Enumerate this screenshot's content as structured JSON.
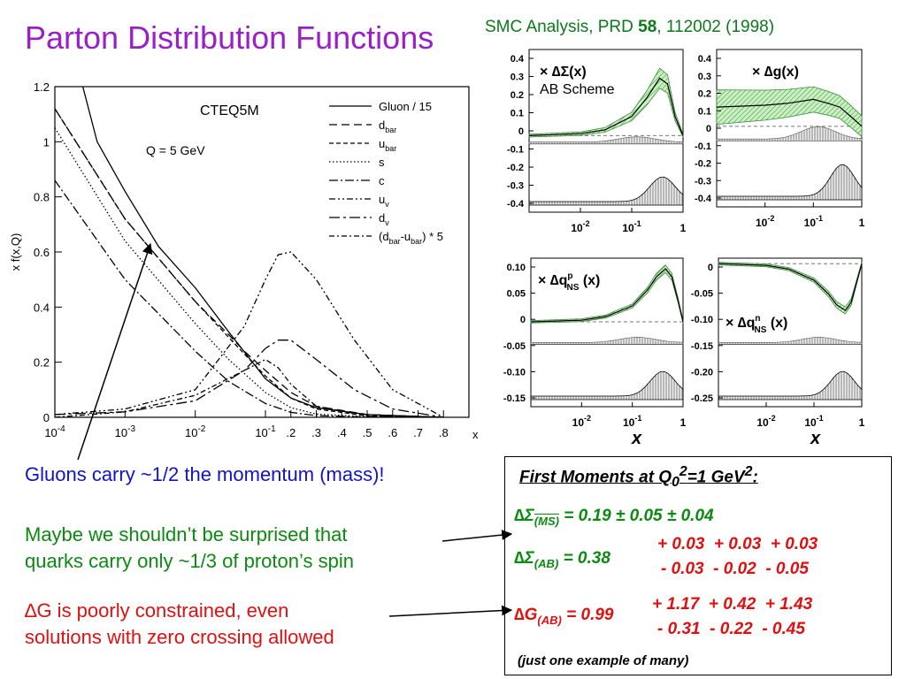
{
  "slide": {
    "title": "Parton Distribution Functions",
    "reference_prefix": "SMC Analysis, PRD ",
    "reference_volume": "58",
    "reference_suffix": ", 112002 (1998)"
  },
  "notes": {
    "gluon_momentum": "Gluons carry ~1/2 the momentum (mass)!",
    "surprise_line1": "Maybe we shouldn’t be surprised that",
    "surprise_line2": "quarks carry only ~1/3 of proton’s spin",
    "dg_line1": "∆G is poorly constrained, even",
    "dg_line2": "solutions with zero crossing allowed"
  },
  "moments": {
    "title_prefix": "First Moments at Q",
    "title_sub": "0",
    "title_sup1": "2",
    "title_mid": "=1 GeV",
    "title_sup2": "2",
    "title_end": ":",
    "ms_symbol": "∆Σ",
    "ms_sub": "(MS)",
    "ms_value": "= 0.19 ± 0.05 ± 0.04",
    "ab_symbol": "∆Σ",
    "ab_sub": "(AB)",
    "ab_value": "= 0.38",
    "ab_err_plus": [
      "+ 0.03",
      "+ 0.03",
      "+ 0.03"
    ],
    "ab_err_minus": [
      "- 0.03",
      "- 0.02",
      "- 0.05"
    ],
    "g_symbol": "∆G",
    "g_sub": "(AB)",
    "g_value": "= 0.99",
    "g_err_plus": [
      "+ 1.17",
      "+ 0.42",
      "+ 1.43"
    ],
    "g_err_minus": [
      "- 0.31",
      "- 0.22",
      "- 0.45"
    ],
    "footnote": "(just one example of many)"
  },
  "chart_data": [
    {
      "type": "line",
      "annotation": "CTEQ5M",
      "subtitle": "Q = 5 GeV",
      "xlabel": "x",
      "ylabel": "x f(x,Q)",
      "xscale": "log-linear",
      "xlim": [
        0.0001,
        0.9
      ],
      "ylim": [
        0,
        1.2
      ],
      "yticks": [
        "0",
        "0.2",
        "0.4",
        "0.6",
        "0.8",
        "1",
        "1.2"
      ],
      "xticks": [
        {
          "x": 0.0001,
          "base": "10",
          "exp": "-4"
        },
        {
          "x": 0.001,
          "base": "10",
          "exp": "-3"
        },
        {
          "x": 0.01,
          "base": "10",
          "exp": "-2"
        },
        {
          "x": 0.1,
          "base": "10",
          "exp": "-1"
        },
        {
          "x": 0.2,
          "label": ".2"
        },
        {
          "x": 0.3,
          "label": ".3"
        },
        {
          "x": 0.4,
          "label": ".4"
        },
        {
          "x": 0.5,
          "label": ".5"
        },
        {
          "x": 0.6,
          "label": ".6"
        },
        {
          "x": 0.7,
          "label": ".7"
        },
        {
          "x": 0.8,
          "label": ".8"
        }
      ],
      "legend_position": "top-right",
      "legend": [
        {
          "text": "Gluon / 15",
          "dash": "none"
        },
        {
          "text": "d",
          "sub": "bar",
          "dash": "9,5"
        },
        {
          "text": "u",
          "sub": "bar",
          "dash": "5,3"
        },
        {
          "text": "s",
          "dash": "1.5,2.5"
        },
        {
          "text": "c",
          "dash": "10,3,2,3"
        },
        {
          "text": "u",
          "sub": "v",
          "dash": "7,3,2,3,2,3"
        },
        {
          "text": "d",
          "sub": "v",
          "dash": "12,4,3,4"
        },
        {
          "text": "(d",
          "sub": "bar",
          "mid": "-u",
          "sub2": "bar",
          "end": ") * 5",
          "dash": "6,3,2,3"
        }
      ],
      "series": [
        {
          "key": "gluon",
          "dash": "none",
          "x": [
            0.00025,
            0.0004,
            0.001,
            0.003,
            0.01,
            0.03,
            0.1,
            0.2,
            0.3,
            0.5,
            0.8
          ],
          "y": [
            1.2,
            1.0,
            0.82,
            0.62,
            0.47,
            0.31,
            0.14,
            0.07,
            0.035,
            0.01,
            0.0
          ]
        },
        {
          "key": "dbar",
          "dash": "9,5",
          "x": [
            0.0001,
            0.001,
            0.01,
            0.03,
            0.05,
            0.1,
            0.2,
            0.3,
            0.5,
            0.8
          ],
          "y": [
            1.12,
            0.72,
            0.42,
            0.3,
            0.24,
            0.17,
            0.09,
            0.04,
            0.01,
            0.0
          ]
        },
        {
          "key": "ubar",
          "dash": "5,3",
          "x": [
            0.0001,
            0.001,
            0.01,
            0.03,
            0.05,
            0.1,
            0.2,
            0.3,
            0.5,
            0.8
          ],
          "y": [
            1.12,
            0.72,
            0.42,
            0.29,
            0.23,
            0.15,
            0.07,
            0.03,
            0.005,
            0.0
          ]
        },
        {
          "key": "s",
          "dash": "1.5,2.5",
          "x": [
            0.0001,
            0.001,
            0.01,
            0.03,
            0.1,
            0.2,
            0.3,
            0.5,
            0.8
          ],
          "y": [
            1.05,
            0.64,
            0.34,
            0.21,
            0.09,
            0.035,
            0.012,
            0.002,
            0.0
          ]
        },
        {
          "key": "c",
          "dash": "10,3,2,3",
          "x": [
            0.0001,
            0.001,
            0.01,
            0.03,
            0.1,
            0.2,
            0.3,
            0.5,
            0.8
          ],
          "y": [
            0.86,
            0.5,
            0.24,
            0.13,
            0.05,
            0.018,
            0.006,
            0.001,
            0.0
          ]
        },
        {
          "key": "uv",
          "dash": "7,3,2,3,2,3",
          "x": [
            0.0001,
            0.001,
            0.01,
            0.05,
            0.1,
            0.15,
            0.2,
            0.3,
            0.45,
            0.6,
            0.8
          ],
          "y": [
            0.01,
            0.03,
            0.1,
            0.33,
            0.5,
            0.59,
            0.6,
            0.5,
            0.28,
            0.1,
            0.0
          ]
        },
        {
          "key": "dv",
          "dash": "12,4,3,4",
          "x": [
            0.0001,
            0.001,
            0.01,
            0.05,
            0.1,
            0.15,
            0.2,
            0.3,
            0.45,
            0.6,
            0.8
          ],
          "y": [
            0.01,
            0.02,
            0.06,
            0.17,
            0.25,
            0.28,
            0.28,
            0.21,
            0.1,
            0.03,
            0.0
          ]
        },
        {
          "key": "dbar-ubar",
          "dash": "6,3,2,3",
          "x": [
            0.0001,
            0.001,
            0.01,
            0.05,
            0.1,
            0.15,
            0.2,
            0.3,
            0.5,
            0.8
          ],
          "y": [
            0.0,
            0.02,
            0.08,
            0.17,
            0.21,
            0.18,
            0.12,
            0.04,
            0.005,
            0.0
          ]
        }
      ]
    },
    {
      "type": "area",
      "panel": "dSigma",
      "label_prefix": "× ∆Σ(x)",
      "sublabel": "AB Scheme",
      "xlim": [
        0.001,
        1
      ],
      "xscale": "log",
      "xticks": [
        {
          "x": 0.01,
          "base": "10",
          "exp": "-2"
        },
        {
          "x": 0.1,
          "base": "10",
          "exp": "-1"
        },
        {
          "x": 1,
          "label": "1"
        }
      ],
      "yticks": [
        "0.4",
        "0.3",
        "0.2",
        "0.1",
        "0",
        "-0.1",
        "-0.2",
        "-0.3",
        "-0.4"
      ],
      "ylim": [
        -0.4,
        0.45
      ],
      "curve": {
        "x": [
          0.001,
          0.01,
          0.03,
          0.1,
          0.2,
          0.35,
          0.5,
          0.7,
          1.0
        ],
        "y": [
          0.0,
          0.01,
          0.03,
          0.1,
          0.2,
          0.3,
          0.27,
          0.1,
          0.0
        ]
      },
      "band": 0.025
    },
    {
      "type": "area",
      "panel": "dg",
      "label_prefix": "× ∆g(x)",
      "xlim": [
        0.001,
        1
      ],
      "xscale": "log",
      "xticks": [
        {
          "x": 0.01,
          "base": "10",
          "exp": "-2"
        },
        {
          "x": 0.1,
          "base": "10",
          "exp": "-1"
        },
        {
          "x": 1,
          "label": "1"
        }
      ],
      "yticks": [
        "0.4",
        "0.3",
        "0.2",
        "0.1",
        "0",
        "-0.1",
        "-0.2",
        "-0.3",
        "-0.4"
      ],
      "ylim": [
        -0.42,
        0.4
      ],
      "curve": {
        "x": [
          0.001,
          0.01,
          0.03,
          0.1,
          0.2,
          0.35,
          0.6,
          1.0
        ],
        "y": [
          0.1,
          0.11,
          0.12,
          0.14,
          0.12,
          0.1,
          0.05,
          0.0
        ]
      },
      "band": 0.09
    },
    {
      "type": "area",
      "panel": "dqNSp",
      "label_prefix": "× ∆q",
      "label_sub": "NS",
      "label_sup": "p",
      "label_end": "(x)",
      "xlabel": "x",
      "xlim": [
        0.001,
        1
      ],
      "xscale": "log",
      "xticks": [
        {
          "x": 0.01,
          "base": "10",
          "exp": "-2"
        },
        {
          "x": 0.1,
          "base": "10",
          "exp": "-1"
        },
        {
          "x": 1,
          "label": "1"
        }
      ],
      "yticks": [
        "0.10",
        "0.05",
        "0",
        "-0.05",
        "-0.10",
        "-0.15"
      ],
      "ylim": [
        -0.16,
        0.12
      ],
      "curve": {
        "x": [
          0.001,
          0.01,
          0.03,
          0.1,
          0.2,
          0.3,
          0.45,
          0.6,
          0.8,
          1.0
        ],
        "y": [
          0.0,
          0.003,
          0.01,
          0.03,
          0.06,
          0.085,
          0.1,
          0.085,
          0.04,
          0.0
        ]
      },
      "band": 0.008
    },
    {
      "type": "area",
      "panel": "dqNSn",
      "label_prefix": "× ∆q",
      "label_sub": "NS",
      "label_sup": "n",
      "label_end": "(x)",
      "xlabel": "x",
      "xlim": [
        0.001,
        1
      ],
      "xscale": "log",
      "xticks": [
        {
          "x": 0.01,
          "base": "10",
          "exp": "-2"
        },
        {
          "x": 0.1,
          "base": "10",
          "exp": "-1"
        },
        {
          "x": 1,
          "label": "1"
        }
      ],
      "yticks": [
        "0",
        "-0.05",
        "-0.10",
        "-0.15",
        "-0.20",
        "-0.25"
      ],
      "ylim": [
        -0.26,
        0.01
      ],
      "curve": {
        "x": [
          0.001,
          0.01,
          0.03,
          0.1,
          0.2,
          0.3,
          0.45,
          0.6,
          0.8,
          1.0
        ],
        "y": [
          0.0,
          -0.003,
          -0.01,
          -0.03,
          -0.055,
          -0.075,
          -0.085,
          -0.07,
          -0.03,
          0.0
        ]
      },
      "band": 0.008
    }
  ]
}
